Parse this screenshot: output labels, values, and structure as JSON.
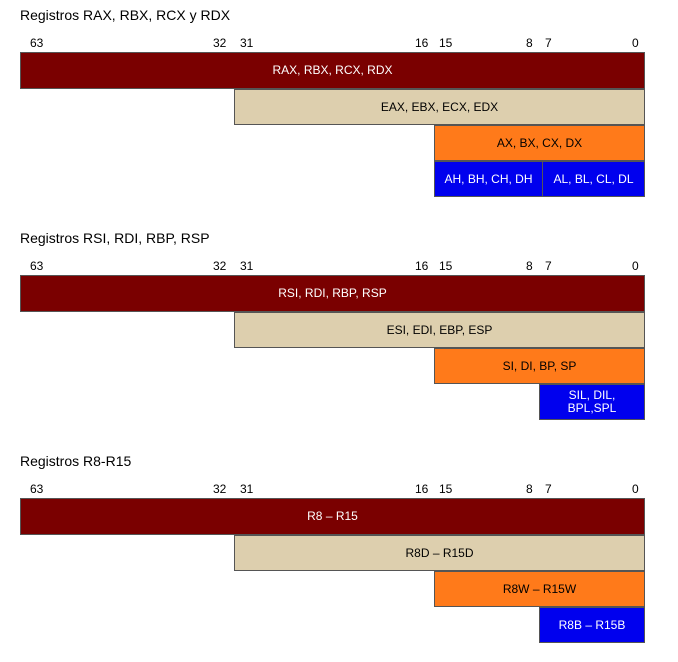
{
  "bit_labels": [
    "63",
    "32",
    "31",
    "16",
    "15",
    "8",
    "7",
    "0"
  ],
  "colors": {
    "reg64": "#7a0000",
    "reg32": "#ddcfae",
    "reg16": "#ff7a1a",
    "reg8": "#0000ee"
  },
  "sections": [
    {
      "title": "Registros RAX, RBX, RCX y RDX",
      "r64": "RAX, RBX, RCX, RDX",
      "r32": "EAX, EBX, ECX, EDX",
      "r16": "AX, BX, CX, DX",
      "r8_high": "AH, BH, CH, DH",
      "r8_low": "AL, BL, CL, DL"
    },
    {
      "title": "Registros RSI, RDI, RBP, RSP",
      "r64": "RSI, RDI, RBP, RSP",
      "r32": "ESI, EDI, EBP, ESP",
      "r16": "SI, DI, BP, SP",
      "r8_line1": "SIL, DIL,",
      "r8_line2": "BPL,SPL"
    },
    {
      "title": "Registros R8-R15",
      "r64": "R8 – R15",
      "r32": "R8D – R15D",
      "r16": "R8W – R15W",
      "r8_low": "R8B – R15B"
    }
  ]
}
